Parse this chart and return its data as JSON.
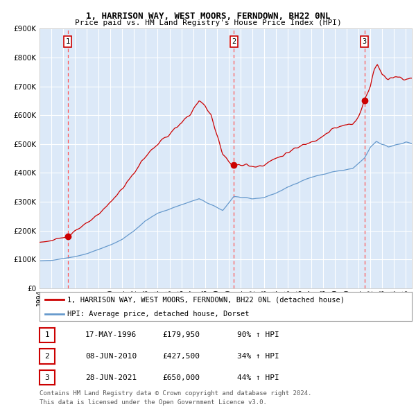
{
  "title": "1, HARRISON WAY, WEST MOORS, FERNDOWN, BH22 0NL",
  "subtitle": "Price paid vs. HM Land Registry's House Price Index (HPI)",
  "transactions": [
    {
      "num": 1,
      "date": "17-MAY-1996",
      "date_float": 1996.38,
      "price": 179950
    },
    {
      "num": 2,
      "date": "08-JUN-2010",
      "date_float": 2010.44,
      "price": 427500
    },
    {
      "num": 3,
      "date": "28-JUN-2021",
      "date_float": 2021.49,
      "price": 650000
    }
  ],
  "legend_property": "1, HARRISON WAY, WEST MOORS, FERNDOWN, BH22 0NL (detached house)",
  "legend_hpi": "HPI: Average price, detached house, Dorset",
  "footer1": "Contains HM Land Registry data © Crown copyright and database right 2024.",
  "footer2": "This data is licensed under the Open Government Licence v3.0.",
  "table_rows": [
    {
      "num": 1,
      "date": "17-MAY-1996",
      "price": "£179,950",
      "change": "90% ↑ HPI"
    },
    {
      "num": 2,
      "date": "08-JUN-2010",
      "price": "£427,500",
      "change": "34% ↑ HPI"
    },
    {
      "num": 3,
      "date": "28-JUN-2021",
      "price": "£650,000",
      "change": "44% ↑ HPI"
    }
  ],
  "plot_bg_color": "#dce9f8",
  "grid_color": "#ffffff",
  "hpi_line_color": "#6699cc",
  "property_line_color": "#cc0000",
  "vline_color": "#ff5555",
  "marker_color": "#cc0000",
  "ylim": [
    0,
    900000
  ],
  "xlim_start": 1994.0,
  "xlim_end": 2025.5
}
